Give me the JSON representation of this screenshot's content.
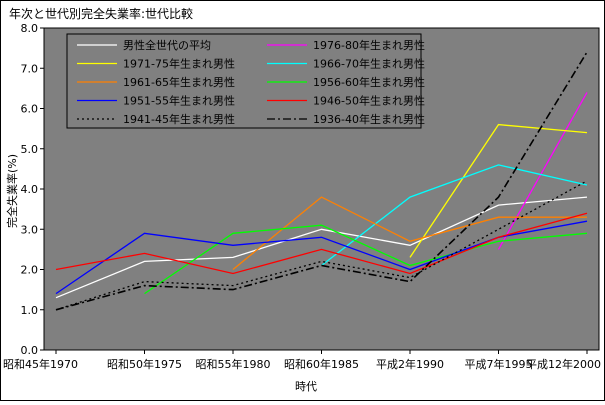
{
  "chart_data": {
    "type": "line",
    "title": "年次と世代別完全失業率:世代比較",
    "xlabel": "時代",
    "ylabel": "完全失業率(%)",
    "ylim": [
      0,
      8
    ],
    "yticks": [
      "0.0",
      "1.0",
      "2.0",
      "3.0",
      "4.0",
      "5.0",
      "6.0",
      "7.0",
      "8.0"
    ],
    "categories": [
      "昭和45年1970",
      "昭和50年1975",
      "昭和55年1980",
      "昭和60年1985",
      "平成2年1990",
      "平成7年1995",
      "平成12年2000"
    ],
    "grid": false,
    "plot_background": "#808080",
    "legend_position": "top",
    "series": [
      {
        "name": "男性全世代の平均",
        "color": "#ffffff",
        "dash": "solid",
        "values": [
          1.3,
          2.2,
          2.3,
          3.0,
          2.6,
          3.6,
          3.8
        ]
      },
      {
        "name": "1976-80年生まれ男性",
        "color": "#ff00ff",
        "dash": "solid",
        "values": [
          null,
          null,
          null,
          null,
          null,
          2.5,
          6.4
        ]
      },
      {
        "name": "1971-75年生まれ男性",
        "color": "#ffff00",
        "dash": "solid",
        "values": [
          null,
          null,
          null,
          null,
          2.3,
          5.6,
          5.4
        ]
      },
      {
        "name": "1966-70年生まれ男性",
        "color": "#00ffff",
        "dash": "solid",
        "values": [
          null,
          null,
          null,
          2.1,
          3.8,
          4.6,
          4.1
        ]
      },
      {
        "name": "1961-65年生まれ男性",
        "color": "#ff8000",
        "dash": "solid",
        "values": [
          null,
          null,
          2.0,
          3.8,
          2.7,
          3.3,
          3.3
        ]
      },
      {
        "name": "1956-60年生まれ男性",
        "color": "#00ff00",
        "dash": "solid",
        "values": [
          null,
          1.4,
          2.9,
          3.1,
          2.1,
          2.7,
          2.9
        ]
      },
      {
        "name": "1951-55年生まれ男性",
        "color": "#0000ff",
        "dash": "solid",
        "values": [
          1.4,
          2.9,
          2.6,
          2.8,
          2.0,
          2.8,
          3.2
        ]
      },
      {
        "name": "1946-50年生まれ男性",
        "color": "#ff0000",
        "dash": "solid",
        "values": [
          2.0,
          2.4,
          1.9,
          2.5,
          1.9,
          2.8,
          3.4
        ]
      },
      {
        "name": "1941-45年生まれ男性",
        "color": "#000000",
        "dash": "dotted",
        "values": [
          1.0,
          1.7,
          1.6,
          2.2,
          1.8,
          3.0,
          4.2
        ]
      },
      {
        "name": "1936-40年生まれ男性",
        "color": "#000000",
        "dash": "dashdot",
        "values": [
          1.0,
          1.6,
          1.5,
          2.1,
          1.7,
          3.8,
          7.4
        ]
      }
    ]
  }
}
